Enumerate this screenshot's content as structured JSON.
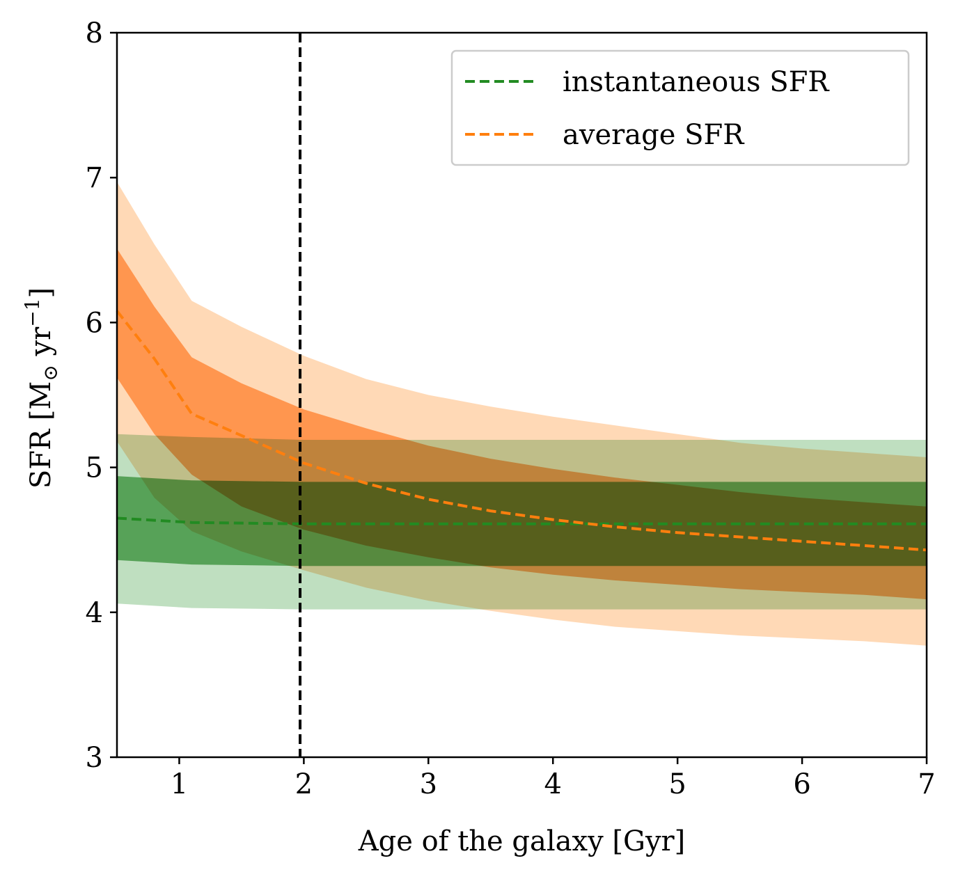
{
  "chart_data": {
    "type": "line",
    "title": "",
    "xlabel": "Age of the galaxy [Gyr]",
    "ylabel_parts": {
      "prefix": "SFR [M",
      "subscript": "⊙",
      "middle": " yr",
      "superscript": "−1",
      "suffix": "]"
    },
    "xlim": [
      0.5,
      7
    ],
    "ylim": [
      3,
      8
    ],
    "x_ticks": [
      1,
      2,
      3,
      4,
      5,
      6,
      7
    ],
    "x_tick_labels": [
      "1",
      "2",
      "3",
      "4",
      "5",
      "6",
      "7"
    ],
    "y_ticks": [
      3,
      4,
      5,
      6,
      7,
      8
    ],
    "y_tick_labels": [
      "3",
      "4",
      "5",
      "6",
      "7",
      "8"
    ],
    "grid": false,
    "legend_position": "top-right",
    "vertical_line": {
      "x": 1.97,
      "style": "dashed",
      "color": "#000000"
    },
    "series": [
      {
        "name": "instantaneous SFR",
        "color": "#228b22",
        "style": "dashed",
        "x": [
          0.5,
          1.1,
          2.0,
          3.0,
          4.0,
          5.0,
          6.0,
          7.0
        ],
        "y": [
          4.65,
          4.62,
          4.61,
          4.61,
          4.61,
          4.61,
          4.61,
          4.61
        ],
        "band_1sigma": {
          "lower": [
            4.36,
            4.33,
            4.32,
            4.32,
            4.32,
            4.32,
            4.32,
            4.32
          ],
          "upper": [
            4.94,
            4.91,
            4.9,
            4.9,
            4.9,
            4.9,
            4.9,
            4.9
          ],
          "color": "#74b975"
        },
        "band_2sigma": {
          "lower": [
            4.06,
            4.03,
            4.02,
            4.02,
            4.02,
            4.02,
            4.02,
            4.02
          ],
          "upper": [
            5.23,
            5.21,
            5.19,
            5.19,
            5.19,
            5.19,
            5.19,
            5.19
          ],
          "color": "#bfdfc0"
        }
      },
      {
        "name": "average SFR",
        "color": "#ff7f0e",
        "style": "dashed",
        "x": [
          0.5,
          0.8,
          1.1,
          1.5,
          2.0,
          2.5,
          3.0,
          3.5,
          4.0,
          4.5,
          5.0,
          5.5,
          6.0,
          6.5,
          7.0
        ],
        "y": [
          6.08,
          5.75,
          5.37,
          5.22,
          5.03,
          4.89,
          4.78,
          4.7,
          4.64,
          4.59,
          4.55,
          4.52,
          4.49,
          4.46,
          4.43
        ],
        "band_1sigma": {
          "lower": [
            5.62,
            5.23,
            4.95,
            4.73,
            4.57,
            4.46,
            4.38,
            4.31,
            4.26,
            4.22,
            4.19,
            4.16,
            4.14,
            4.12,
            4.09
          ],
          "upper": [
            6.51,
            6.11,
            5.76,
            5.58,
            5.4,
            5.27,
            5.15,
            5.06,
            4.99,
            4.93,
            4.88,
            4.83,
            4.79,
            4.76,
            4.73
          ],
          "color": "#ffb06f"
        },
        "band_2sigma": {
          "lower": [
            5.18,
            4.79,
            4.56,
            4.42,
            4.29,
            4.17,
            4.08,
            4.01,
            3.95,
            3.9,
            3.87,
            3.84,
            3.82,
            3.8,
            3.77
          ],
          "upper": [
            6.97,
            6.54,
            6.15,
            5.97,
            5.77,
            5.61,
            5.5,
            5.42,
            5.35,
            5.29,
            5.23,
            5.17,
            5.13,
            5.1,
            5.07
          ],
          "color": "#ffd9b6"
        }
      }
    ]
  }
}
